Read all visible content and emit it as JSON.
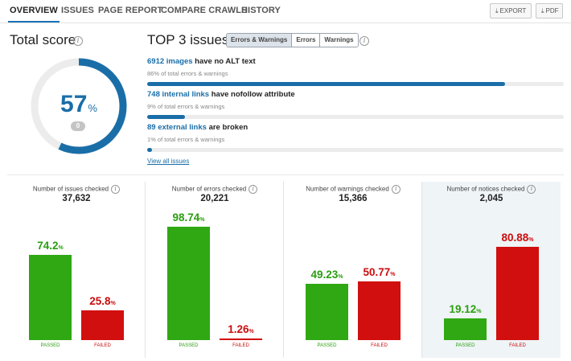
{
  "nav": {
    "tabs": [
      "OVERVIEW",
      "ISSUES",
      "PAGE REPORT",
      "COMPARE CRAWLS",
      "HISTORY"
    ],
    "active": "OVERVIEW",
    "export_label": "EXPORT",
    "pdf_label": "PDF"
  },
  "total_score": {
    "title": "Total score",
    "value": 57,
    "unit": "%",
    "change": "0",
    "color_fill": "#1a6ea8",
    "color_track": "#ececec"
  },
  "top3": {
    "title": "TOP 3 issues:",
    "filters": [
      "Errors & Warnings",
      "Errors",
      "Warnings"
    ],
    "issues": [
      {
        "count_link": "6912 images",
        "rest": " have no ALT text",
        "share_text": "86% of total errors & warnings",
        "share": 86
      },
      {
        "count_link": "748 internal links",
        "rest": " have nofollow attribute",
        "share_text": "9% of total errors & warnings",
        "share": 9
      },
      {
        "count_link": "89 external links",
        "rest": " are broken",
        "share_text": "1% of total errors & warnings",
        "share": 1
      }
    ],
    "view_all": "View all issues"
  },
  "panels": [
    {
      "title": "Number of issues checked",
      "count": "37,632",
      "passed": "74.2",
      "failed": "25.8",
      "passed_value": 74.2,
      "failed_value": 25.8
    },
    {
      "title": "Number of errors checked",
      "count": "20,221",
      "passed": "98.74",
      "failed": "1.26",
      "passed_value": 98.74,
      "failed_value": 1.26
    },
    {
      "title": "Number of warnings checked",
      "count": "15,366",
      "passed": "49.23",
      "failed": "50.77",
      "passed_value": 49.23,
      "failed_value": 50.77
    },
    {
      "title": "Number of notices checked",
      "count": "2,045",
      "passed": "19.12",
      "failed": "80.88",
      "passed_value": 19.12,
      "failed_value": 80.88
    }
  ],
  "labels": {
    "passed": "PASSED",
    "failed": "FAILED",
    "percent": "%"
  },
  "colors": {
    "passed": "#2fa813",
    "failed": "#d10f0f",
    "accent": "#1a6ea8",
    "notices_bg": "#eff4f7"
  }
}
